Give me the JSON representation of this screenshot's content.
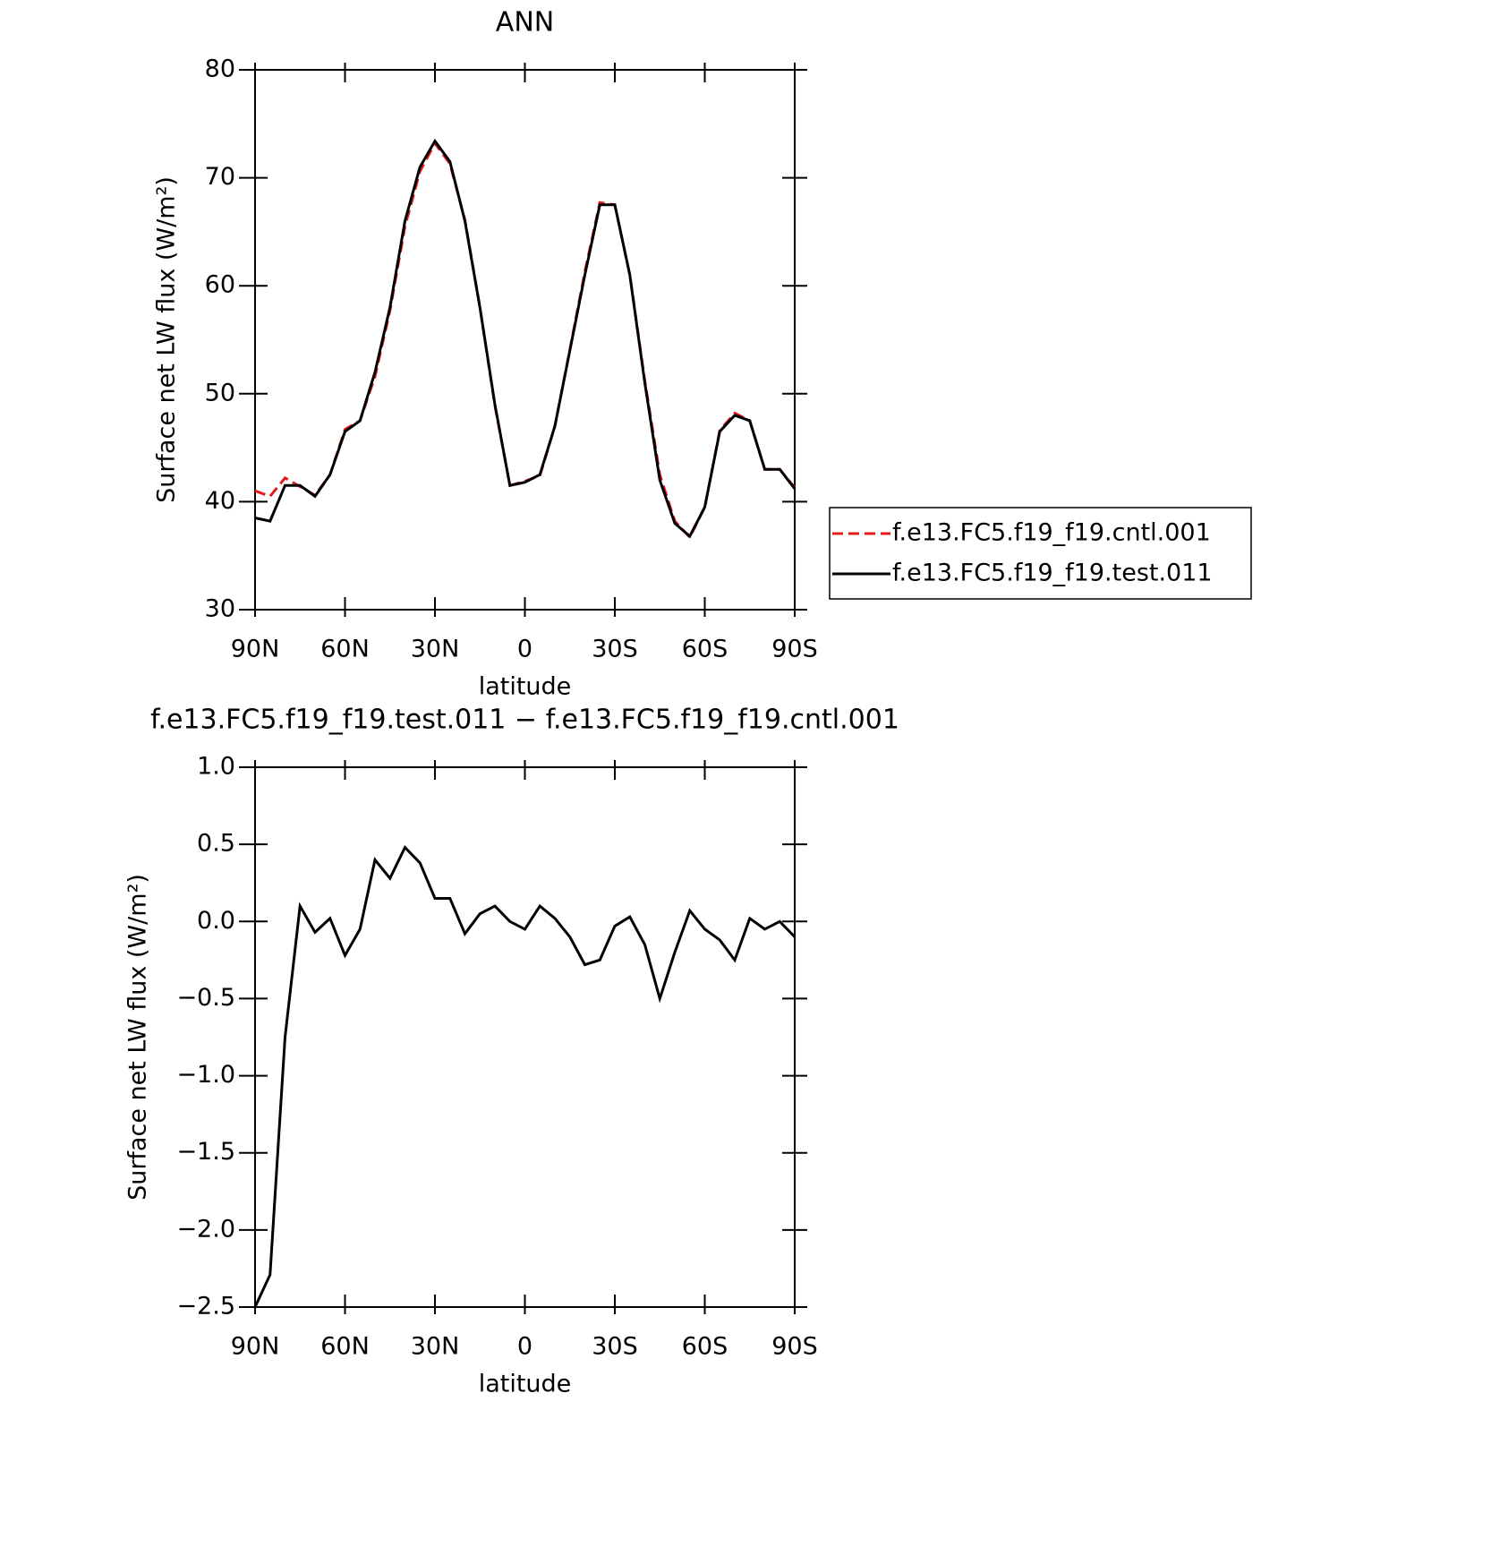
{
  "chart_data": [
    {
      "type": "line",
      "title": "ANN",
      "x_label": "latitude",
      "y_label": "Surface net LW flux (W/m²)",
      "x": [
        90,
        85,
        80,
        75,
        70,
        65,
        60,
        55,
        50,
        45,
        40,
        35,
        30,
        25,
        20,
        15,
        10,
        5,
        0,
        -5,
        -10,
        -15,
        -20,
        -25,
        -30,
        -35,
        -40,
        -45,
        -50,
        -55,
        -60,
        -65,
        -70,
        -75,
        -80,
        -85,
        -90
      ],
      "series": [
        {
          "name": "f.e13.FC5.f19_f19.cntl.001",
          "color": "#e41a1c",
          "dashed": true,
          "values": [
            41.0,
            40.5,
            42.2,
            41.4,
            40.6,
            42.5,
            46.7,
            47.5,
            51.6,
            57.7,
            65.5,
            70.6,
            73.2,
            71.3,
            66.1,
            58,
            48.9,
            41.5,
            41.9,
            42.4,
            47,
            54.1,
            61.3,
            67.7,
            67.5,
            61,
            51.2,
            42.5,
            38.2,
            36.7,
            39.5,
            46.6,
            48.2,
            47.5,
            43,
            43,
            41.3
          ]
        },
        {
          "name": "f.e13.FC5.f19_f19.test.011",
          "color": "#000000",
          "dashed": false,
          "values": [
            38.5,
            38.2,
            41.5,
            41.5,
            40.5,
            42.5,
            46.5,
            47.5,
            52,
            58,
            66,
            71,
            73.4,
            71.5,
            66,
            58,
            49,
            41.5,
            41.8,
            42.5,
            47,
            54,
            61,
            67.5,
            67.5,
            61,
            51,
            42,
            38,
            36.8,
            39.5,
            46.5,
            48,
            47.5,
            43,
            43,
            41.2
          ]
        }
      ],
      "xlim": [
        90,
        -90
      ],
      "xticks": [
        {
          "value": 90,
          "label": "90N"
        },
        {
          "value": 60,
          "label": "60N"
        },
        {
          "value": 30,
          "label": "30N"
        },
        0,
        {
          "value": -30,
          "label": "30S"
        },
        {
          "value": -60,
          "label": "60S"
        },
        {
          "value": -90,
          "label": "90S"
        }
      ],
      "ylim": [
        30,
        80
      ],
      "yticks": [
        30,
        40,
        50,
        60,
        70,
        80
      ],
      "legend": "right"
    },
    {
      "type": "line",
      "title": "f.e13.FC5.f19_f19.test.011 − f.e13.FC5.f19_f19.cntl.001",
      "x_label": "latitude",
      "y_label": "Surface net LW flux (W/m²)",
      "x": [
        90,
        85,
        80,
        75,
        70,
        65,
        60,
        55,
        50,
        45,
        40,
        35,
        30,
        25,
        20,
        15,
        10,
        5,
        0,
        -5,
        -10,
        -15,
        -20,
        -25,
        -30,
        -35,
        -40,
        -45,
        -50,
        -55,
        -60,
        -65,
        -70,
        -75,
        -80,
        -85,
        -90
      ],
      "values": [
        -2.5,
        -2.29,
        -0.75,
        0.1,
        -0.07,
        0.02,
        -0.22,
        -0.05,
        0.4,
        0.28,
        0.48,
        0.38,
        0.15,
        0.15,
        -0.08,
        0.05,
        0.1,
        0.0,
        -0.05,
        0.1,
        0.02,
        -0.1,
        -0.28,
        -0.25,
        -0.03,
        0.03,
        -0.15,
        -0.5,
        -0.2,
        0.07,
        -0.05,
        -0.12,
        -0.25,
        0.02,
        -0.05,
        0.0,
        -0.1
      ],
      "color": "#000000",
      "xlim": [
        90,
        -90
      ],
      "xticks": [
        {
          "value": 90,
          "label": "90N"
        },
        {
          "value": 60,
          "label": "60N"
        },
        {
          "value": 30,
          "label": "30N"
        },
        0,
        {
          "value": -30,
          "label": "30S"
        },
        {
          "value": -60,
          "label": "60S"
        },
        {
          "value": -90,
          "label": "90S"
        }
      ],
      "ylim": [
        -2.5,
        1.0
      ],
      "yticks": [
        {
          "value": -2.5,
          "label": "−2.5"
        },
        {
          "value": -2.0,
          "label": "−2.0"
        },
        {
          "value": -1.5,
          "label": "−1.5"
        },
        {
          "value": -1.0,
          "label": "−1.0"
        },
        {
          "value": -0.5,
          "label": "−0.5"
        },
        {
          "value": 0,
          "label": "0.0"
        },
        {
          "value": 0.5,
          "label": "0.5"
        },
        {
          "value": 1.0,
          "label": "1.0"
        }
      ]
    }
  ]
}
